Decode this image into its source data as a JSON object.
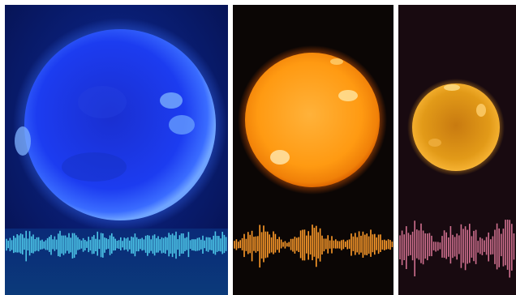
{
  "panels": [
    {
      "id": "blue",
      "sun_color": "#1f44ff",
      "background": "#0a1c6a",
      "wave_color": "#4cc6e8",
      "wave_background": "#0b3a7a"
    },
    {
      "id": "orange",
      "sun_color": "#ff9a10",
      "background": "#0b0605",
      "wave_color": "#ff9b2a",
      "wave_background": "#080605"
    },
    {
      "id": "gold",
      "sun_color": "#e7a019",
      "background": "#180a10",
      "wave_color": "#d0708f",
      "wave_background": "#14080e"
    }
  ],
  "divider_color": "#ffffff"
}
